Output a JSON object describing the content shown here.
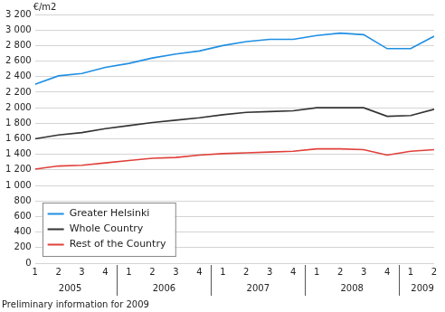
{
  "chart_data": {
    "type": "line",
    "y_label": "€/m2",
    "footnote": "Preliminary information for 2009",
    "categories": [
      "1",
      "2",
      "3",
      "4",
      "1",
      "2",
      "3",
      "4",
      "1",
      "2",
      "3",
      "4",
      "1",
      "2",
      "3",
      "4",
      "1",
      "2"
    ],
    "groups": [
      {
        "label": "2005",
        "count": 4
      },
      {
        "label": "2006",
        "count": 4
      },
      {
        "label": "2007",
        "count": 4
      },
      {
        "label": "2008",
        "count": 4
      },
      {
        "label": "2009",
        "count": 2
      }
    ],
    "series": [
      {
        "name": "Greater Helsinki",
        "color": "#1f8fe3",
        "values": [
          2300,
          2410,
          2440,
          2520,
          2570,
          2640,
          2690,
          2730,
          2800,
          2850,
          2880,
          2880,
          2930,
          2960,
          2940,
          2760,
          2760,
          2920
        ]
      },
      {
        "name": "Whole Country",
        "color": "#333333",
        "values": [
          1600,
          1650,
          1680,
          1730,
          1770,
          1810,
          1840,
          1870,
          1910,
          1940,
          1950,
          1960,
          2000,
          2000,
          2000,
          1890,
          1900,
          1980
        ]
      },
      {
        "name": "Rest of the Country",
        "color": "#e0403a",
        "values": [
          1210,
          1250,
          1260,
          1290,
          1320,
          1350,
          1360,
          1390,
          1410,
          1420,
          1430,
          1440,
          1470,
          1470,
          1460,
          1390,
          1440,
          1460
        ]
      }
    ],
    "ylim": [
      0,
      3200
    ],
    "yticks": [
      0,
      200,
      400,
      600,
      800,
      {
        "value": 1000,
        "label": "1 000"
      },
      {
        "value": 1200,
        "label": "1 200"
      },
      {
        "value": 1400,
        "label": "1 400"
      },
      {
        "value": 1600,
        "label": "1 600"
      },
      {
        "value": 1800,
        "label": "1 800"
      },
      {
        "value": 2000,
        "label": "2 000"
      },
      {
        "value": 2200,
        "label": "2 200"
      },
      {
        "value": 2400,
        "label": "2 400"
      },
      {
        "value": 2600,
        "label": "2 600"
      },
      {
        "value": 2800,
        "label": "2 800"
      },
      {
        "value": 3000,
        "label": "3 000"
      },
      {
        "value": 3200,
        "label": "3 200"
      }
    ],
    "grid": true,
    "legend": "lower left"
  }
}
